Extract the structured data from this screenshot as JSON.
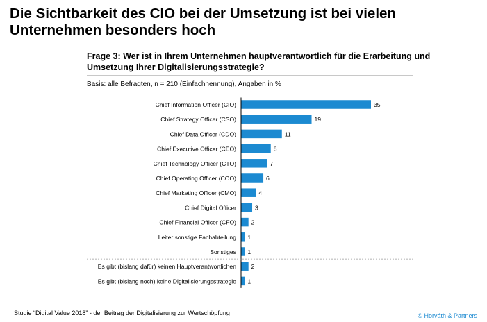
{
  "headline": "Die Sichtbarkeit des CIO bei der Umsetzung ist bei vielen Unternehmen besonders hoch",
  "question": "Frage 3: Wer ist in Ihrem Unternehmen hauptverantwortlich für die Erarbeitung und Umsetzung Ihrer Digitalisierungsstrategie?",
  "basis": "Basis: alle Befragten, n = 210 (Einfachnennung), Angaben in %",
  "footer": {
    "source": "Studie “Digital Value 2018” - der Beitrag der Digitalisierung zur Wertschöpfung",
    "copyright": "© Horváth & Partners"
  },
  "colors": {
    "bar": "#1c8ad1",
    "axis": "#000000",
    "separator": "#9a9a9a",
    "copyright": "#1c8ad1"
  },
  "chart_data": {
    "type": "bar",
    "orientation": "horizontal",
    "categories": [
      "Chief Information Officer (CIO)",
      "Chief Strategy Officer (CSO)",
      "Chief Data Officer (CDO)",
      "Chief Executive Officer (CEO)",
      "Chief Technology Officer (CTO)",
      "Chief Operating Officer (COO)",
      "Chief Marketing Officer (CMO)",
      "Chief Digital Officer",
      "Chief Financial Officer (CFO)",
      "Leiter sonstige Fachabteilung",
      "Sonstiges",
      "Es gibt (bislang dafür) keinen Hauptverantwortlichen",
      "Es gibt (bislang noch) keine Digitalisierungsstrategie"
    ],
    "values": [
      35,
      19,
      11,
      8,
      7,
      6,
      4,
      3,
      2,
      1,
      1,
      2,
      1
    ],
    "xlim": [
      0,
      35
    ],
    "separator_after_index": 10,
    "grid": false,
    "legend": "none"
  }
}
